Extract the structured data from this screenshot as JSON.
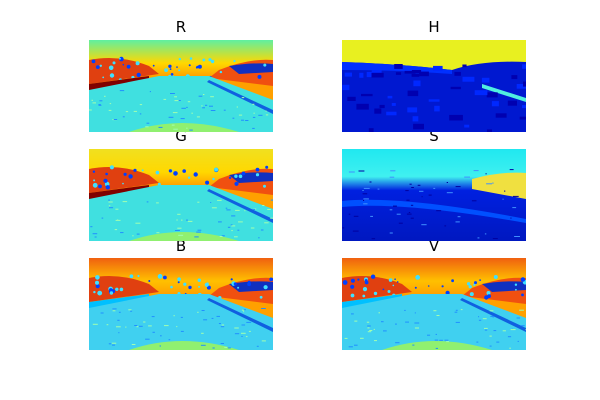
{
  "colormap": "jet",
  "panels": [
    {
      "id": "r",
      "title": "R",
      "scheme": "road-r"
    },
    {
      "id": "h",
      "title": "H",
      "scheme": "hue"
    },
    {
      "id": "g",
      "title": "G",
      "scheme": "road-g"
    },
    {
      "id": "s",
      "title": "S",
      "scheme": "sat"
    },
    {
      "id": "b",
      "title": "B",
      "scheme": "road-b"
    },
    {
      "id": "v",
      "title": "V",
      "scheme": "road-b"
    }
  ]
}
